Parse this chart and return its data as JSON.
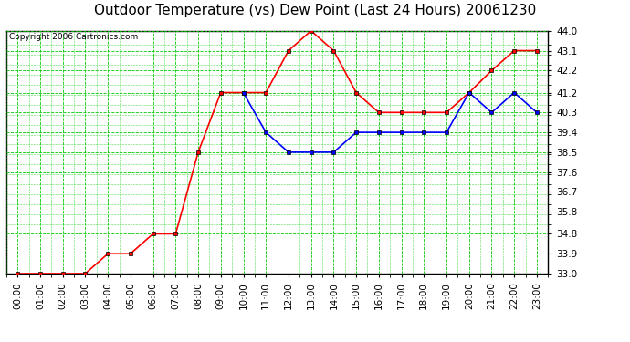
{
  "title": "Outdoor Temperature (vs) Dew Point (Last 24 Hours) 20061230",
  "copyright": "Copyright 2006 Cartronics.com",
  "hours": [
    "00:00",
    "01:00",
    "02:00",
    "03:00",
    "04:00",
    "05:00",
    "06:00",
    "07:00",
    "08:00",
    "09:00",
    "10:00",
    "11:00",
    "12:00",
    "13:00",
    "14:00",
    "15:00",
    "16:00",
    "17:00",
    "18:00",
    "19:00",
    "20:00",
    "21:00",
    "22:00",
    "23:00"
  ],
  "temp": [
    33.0,
    33.0,
    33.0,
    33.0,
    33.9,
    33.9,
    34.8,
    34.8,
    38.5,
    41.2,
    41.2,
    41.2,
    43.1,
    44.0,
    43.1,
    41.2,
    40.3,
    40.3,
    40.3,
    40.3,
    41.2,
    42.2,
    43.1,
    43.1
  ],
  "dew": [
    null,
    null,
    null,
    null,
    null,
    null,
    null,
    null,
    null,
    null,
    41.2,
    39.4,
    38.5,
    38.5,
    38.5,
    39.4,
    39.4,
    39.4,
    39.4,
    39.4,
    41.2,
    40.3,
    41.2,
    40.3
  ],
  "temp_color": "#ff0000",
  "dew_color": "#0000ff",
  "bg_color": "#ffffff",
  "grid_color": "#00cc00",
  "ylim_min": 33.0,
  "ylim_max": 44.0,
  "yticks": [
    33.0,
    33.9,
    34.8,
    35.8,
    36.7,
    37.6,
    38.5,
    39.4,
    40.3,
    41.2,
    42.2,
    43.1,
    44.0
  ],
  "title_fontsize": 11,
  "copyright_fontsize": 6.5,
  "tick_fontsize": 7.5,
  "markersize": 3.5,
  "linewidth": 1.2
}
